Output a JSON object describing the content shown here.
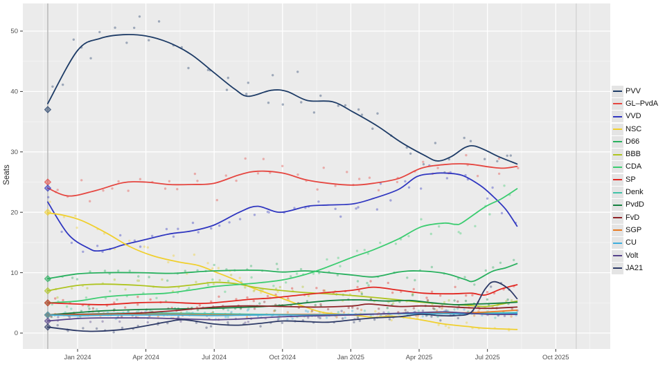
{
  "chart_data": {
    "type": "line",
    "title": "",
    "xlabel": "",
    "ylabel": "Seats",
    "ylim": [
      0,
      52
    ],
    "grid": true,
    "legend_position": "right",
    "x_unit": "months since Jan 2024",
    "y_ticks": [
      0,
      10,
      20,
      30,
      40,
      50
    ],
    "x_ticks": [
      {
        "t": 0,
        "label": "Jan 2024"
      },
      {
        "t": 3,
        "label": "Apr 2024"
      },
      {
        "t": 6,
        "label": "Jul 2024"
      },
      {
        "t": 9,
        "label": "Oct 2024"
      },
      {
        "t": 12,
        "label": "Jan 2025"
      },
      {
        "t": 15,
        "label": "Apr 2025"
      },
      {
        "t": 18,
        "label": "Jul 2025"
      },
      {
        "t": 21,
        "label": "Oct 2025"
      }
    ],
    "vlines": [
      {
        "t": -1.31,
        "name": "election-2023-marker"
      },
      {
        "t": 21.9,
        "name": "election-2025-marker"
      }
    ],
    "series": [
      {
        "name": "PVV",
        "color": "#1d3b66",
        "election_seats": 37,
        "points": [
          [
            -1.31,
            38
          ],
          [
            0,
            46.8
          ],
          [
            1,
            48.8
          ],
          [
            2,
            49.4
          ],
          [
            3,
            49.2
          ],
          [
            4,
            48.1
          ],
          [
            5,
            46.1
          ],
          [
            6,
            43.1
          ],
          [
            6.9,
            40.4
          ],
          [
            7.5,
            39.2
          ],
          [
            8.5,
            40.2
          ],
          [
            9.2,
            40
          ],
          [
            10.1,
            38.5
          ],
          [
            11.2,
            38.3
          ],
          [
            12.1,
            36.6
          ],
          [
            13.2,
            34.2
          ],
          [
            14.2,
            31.6
          ],
          [
            15.2,
            29.5
          ],
          [
            15.8,
            28.5
          ],
          [
            16.4,
            29.2
          ],
          [
            17,
            30.7
          ],
          [
            17.4,
            31
          ],
          [
            17.9,
            30.3
          ],
          [
            18.5,
            29.2
          ],
          [
            19.3,
            28
          ]
        ]
      },
      {
        "name": "GL–PvdA",
        "color": "#e5453f",
        "election_seats": 25,
        "points": [
          [
            -1.31,
            24
          ],
          [
            -0.4,
            22.7
          ],
          [
            0.8,
            23.6
          ],
          [
            2,
            24.9
          ],
          [
            3,
            25
          ],
          [
            4,
            24.6
          ],
          [
            5,
            24.6
          ],
          [
            6,
            24.8
          ],
          [
            7.1,
            26.2
          ],
          [
            7.9,
            26.8
          ],
          [
            9,
            26.5
          ],
          [
            10,
            25.4
          ],
          [
            11,
            24.8
          ],
          [
            12.1,
            24.5
          ],
          [
            13,
            24.8
          ],
          [
            14.1,
            25.6
          ],
          [
            15.1,
            27.3
          ],
          [
            16.1,
            27.9
          ],
          [
            17.1,
            28
          ],
          [
            18.1,
            27.5
          ],
          [
            18.7,
            27.3
          ],
          [
            19.3,
            27.6
          ]
        ]
      },
      {
        "name": "VVD",
        "color": "#2f36c0",
        "election_seats": 24,
        "points": [
          [
            -1.31,
            21.7
          ],
          [
            -0.4,
            16.3
          ],
          [
            0.5,
            14
          ],
          [
            0.9,
            13.6
          ],
          [
            1.5,
            14
          ],
          [
            2,
            14.6
          ],
          [
            3,
            15.5
          ],
          [
            4,
            16.4
          ],
          [
            5,
            16.9
          ],
          [
            6,
            17.9
          ],
          [
            7.1,
            20
          ],
          [
            7.9,
            21
          ],
          [
            8.9,
            20
          ],
          [
            10.1,
            21
          ],
          [
            11,
            21.2
          ],
          [
            12.1,
            21.4
          ],
          [
            13,
            22.3
          ],
          [
            14.1,
            23.8
          ],
          [
            14.9,
            25.9
          ],
          [
            15.6,
            26.4
          ],
          [
            16.1,
            26.5
          ],
          [
            16.9,
            26.1
          ],
          [
            17.7,
            24.4
          ],
          [
            18.2,
            22.8
          ],
          [
            18.8,
            20.5
          ],
          [
            19.3,
            17.7
          ]
        ]
      },
      {
        "name": "NSC",
        "color": "#f0cf2c",
        "election_seats": 20,
        "points": [
          [
            -1.31,
            19.9
          ],
          [
            -0.6,
            19.5
          ],
          [
            0.2,
            18.6
          ],
          [
            1.3,
            16.5
          ],
          [
            2.3,
            14.3
          ],
          [
            3.3,
            12.8
          ],
          [
            4.4,
            11.8
          ],
          [
            5.3,
            11.2
          ],
          [
            6,
            10.2
          ],
          [
            6.8,
            9
          ],
          [
            7.6,
            7.6
          ],
          [
            8.8,
            6
          ],
          [
            9.8,
            4.6
          ],
          [
            10.8,
            3.4
          ],
          [
            12.1,
            3
          ],
          [
            13,
            2.6
          ],
          [
            13.8,
            2.8
          ],
          [
            14.9,
            2.3
          ],
          [
            16.1,
            1.5
          ],
          [
            17.1,
            1.1
          ],
          [
            17.9,
            0.8
          ],
          [
            19.3,
            0.6
          ]
        ]
      },
      {
        "name": "D66",
        "color": "#28b05e",
        "election_seats": 9,
        "points": [
          [
            -1.31,
            9
          ],
          [
            0,
            9.8
          ],
          [
            1.2,
            10
          ],
          [
            2.7,
            10
          ],
          [
            4.2,
            9.9
          ],
          [
            6,
            10.3
          ],
          [
            7.9,
            10.4
          ],
          [
            9,
            10.1
          ],
          [
            10,
            10.3
          ],
          [
            11,
            10
          ],
          [
            12.1,
            9.6
          ],
          [
            13,
            9.3
          ],
          [
            14.1,
            10.1
          ],
          [
            14.9,
            10.3
          ],
          [
            16.1,
            9.9
          ],
          [
            17,
            8.9
          ],
          [
            17.4,
            8.6
          ],
          [
            18.2,
            10.2
          ],
          [
            18.8,
            10.8
          ],
          [
            19.3,
            11.5
          ]
        ]
      },
      {
        "name": "BBB",
        "color": "#aec41f",
        "election_seats": 7,
        "points": [
          [
            -1.31,
            7
          ],
          [
            0,
            7.9
          ],
          [
            1.2,
            8.1
          ],
          [
            2.7,
            7.9
          ],
          [
            3.9,
            7.6
          ],
          [
            5.1,
            8
          ],
          [
            6,
            8.4
          ],
          [
            6.9,
            8.2
          ],
          [
            7.9,
            7.5
          ],
          [
            8.8,
            7.1
          ],
          [
            10,
            6.7
          ],
          [
            11,
            6.5
          ],
          [
            12.1,
            6.2
          ],
          [
            13,
            5.9
          ],
          [
            14.1,
            5.5
          ],
          [
            15.1,
            5.1
          ],
          [
            16.1,
            4.8
          ],
          [
            17.1,
            4.6
          ],
          [
            17.9,
            4.4
          ],
          [
            18.5,
            4.7
          ],
          [
            19.3,
            5.3
          ]
        ]
      },
      {
        "name": "CDA",
        "color": "#3bcc70",
        "election_seats": 5,
        "points": [
          [
            -1.31,
            5
          ],
          [
            0,
            5.3
          ],
          [
            1.2,
            6
          ],
          [
            2.7,
            6.4
          ],
          [
            3.9,
            6.6
          ],
          [
            5.1,
            7.2
          ],
          [
            6,
            7.7
          ],
          [
            6.9,
            8
          ],
          [
            7.9,
            8.3
          ],
          [
            9,
            8.8
          ],
          [
            10,
            9.7
          ],
          [
            10.8,
            10.7
          ],
          [
            12.1,
            12.6
          ],
          [
            13,
            13.8
          ],
          [
            14.1,
            15.6
          ],
          [
            15.1,
            17.6
          ],
          [
            16.1,
            18.2
          ],
          [
            16.6,
            18
          ],
          [
            16.9,
            18.3
          ],
          [
            17.9,
            20.9
          ],
          [
            18.6,
            22.2
          ],
          [
            19.3,
            23.9
          ]
        ]
      },
      {
        "name": "SP",
        "color": "#e2251f",
        "election_seats": 5,
        "points": [
          [
            -1.31,
            5
          ],
          [
            0,
            4.8
          ],
          [
            1.2,
            4.7
          ],
          [
            2.5,
            5
          ],
          [
            3.9,
            5.1
          ],
          [
            5.4,
            4.9
          ],
          [
            6.5,
            5.2
          ],
          [
            7.6,
            5.6
          ],
          [
            8.5,
            5.8
          ],
          [
            9.8,
            6.3
          ],
          [
            10.9,
            6.7
          ],
          [
            12.1,
            7.1
          ],
          [
            13,
            7.6
          ],
          [
            14.1,
            7.1
          ],
          [
            15.2,
            6.6
          ],
          [
            16.4,
            6.5
          ],
          [
            17.3,
            6.6
          ],
          [
            17.9,
            6.3
          ],
          [
            18.6,
            7.3
          ],
          [
            19.3,
            8
          ]
        ]
      },
      {
        "name": "Denk",
        "color": "#3fc2a7",
        "election_seats": 3,
        "points": [
          [
            -1.31,
            3
          ],
          [
            0,
            3.1
          ],
          [
            2,
            3.3
          ],
          [
            4,
            3.3
          ],
          [
            6,
            3.2
          ],
          [
            8,
            3.1
          ],
          [
            10,
            3.1
          ],
          [
            12.1,
            3.1
          ],
          [
            14.1,
            3.2
          ],
          [
            16.1,
            3.2
          ],
          [
            18,
            3.3
          ],
          [
            19.3,
            3.4
          ]
        ]
      },
      {
        "name": "PvdD",
        "color": "#15803f",
        "election_seats": 3,
        "points": [
          [
            -1.31,
            3
          ],
          [
            0,
            3.4
          ],
          [
            1.2,
            3.7
          ],
          [
            2.7,
            3.9
          ],
          [
            4.3,
            4
          ],
          [
            6,
            4.1
          ],
          [
            7.6,
            4.3
          ],
          [
            9,
            4.6
          ],
          [
            10,
            5
          ],
          [
            11.2,
            5.4
          ],
          [
            12.4,
            5.5
          ],
          [
            13.6,
            5.3
          ],
          [
            14.6,
            5.4
          ],
          [
            15.6,
            5
          ],
          [
            16.6,
            4.7
          ],
          [
            17.4,
            4.8
          ],
          [
            18.2,
            4.9
          ],
          [
            19.3,
            5.1
          ]
        ]
      },
      {
        "name": "FvD",
        "color": "#8e2226",
        "election_seats": 3,
        "points": [
          [
            -1.31,
            3
          ],
          [
            0,
            3.1
          ],
          [
            2,
            3.2
          ],
          [
            3.9,
            3.6
          ],
          [
            6,
            4.3
          ],
          [
            7.5,
            4.5
          ],
          [
            9,
            4.4
          ],
          [
            10.5,
            4.3
          ],
          [
            12.1,
            4.5
          ],
          [
            12.8,
            4.8
          ],
          [
            14.1,
            4.4
          ],
          [
            15.1,
            4.5
          ],
          [
            16.1,
            4.4
          ],
          [
            17.1,
            4.2
          ],
          [
            18.1,
            4.1
          ],
          [
            19.3,
            4.3
          ]
        ]
      },
      {
        "name": "SGP",
        "color": "#e8791f",
        "election_seats": 3,
        "points": [
          [
            -1.31,
            3
          ],
          [
            0,
            3
          ],
          [
            2,
            3.1
          ],
          [
            4,
            3.1
          ],
          [
            6,
            3
          ],
          [
            8,
            3
          ],
          [
            10,
            3.1
          ],
          [
            12.1,
            3.1
          ],
          [
            14.1,
            3.2
          ],
          [
            16.1,
            3.3
          ],
          [
            17.5,
            3.4
          ],
          [
            18.5,
            3.6
          ],
          [
            19.3,
            3.8
          ]
        ]
      },
      {
        "name": "CU",
        "color": "#3eaede",
        "election_seats": 3,
        "points": [
          [
            -1.31,
            3
          ],
          [
            0,
            2.9
          ],
          [
            2,
            3
          ],
          [
            4,
            3
          ],
          [
            6,
            2.9
          ],
          [
            8,
            3
          ],
          [
            10,
            3
          ],
          [
            12.1,
            3.1
          ],
          [
            14.1,
            3.2
          ],
          [
            16.1,
            3.2
          ],
          [
            18.1,
            3.2
          ],
          [
            19.3,
            3.3
          ]
        ]
      },
      {
        "name": "Volt",
        "color": "#55428a",
        "election_seats": 2,
        "points": [
          [
            -1.31,
            2
          ],
          [
            0,
            2.4
          ],
          [
            1,
            2.5
          ],
          [
            3,
            2.5
          ],
          [
            5,
            2.3
          ],
          [
            6,
            2.2
          ],
          [
            7,
            2.3
          ],
          [
            9,
            2.7
          ],
          [
            11,
            2.9
          ],
          [
            12.1,
            3
          ],
          [
            13.5,
            3.2
          ],
          [
            15.1,
            3.4
          ],
          [
            16.1,
            3.5
          ],
          [
            17.1,
            3.3
          ],
          [
            18.1,
            3.1
          ],
          [
            19.3,
            3.1
          ]
        ]
      },
      {
        "name": "JA21",
        "color": "#2c3966",
        "election_seats": 1,
        "points": [
          [
            -1.31,
            1
          ],
          [
            0,
            0.4
          ],
          [
            0.8,
            0.3
          ],
          [
            2,
            0.6
          ],
          [
            3,
            1.2
          ],
          [
            4,
            1.9
          ],
          [
            4.7,
            2.2
          ],
          [
            6,
            1.5
          ],
          [
            7,
            1.3
          ],
          [
            8,
            1.6
          ],
          [
            9,
            2
          ],
          [
            10,
            1.9
          ],
          [
            11,
            1.8
          ],
          [
            12.1,
            2.2
          ],
          [
            13,
            2.5
          ],
          [
            14.1,
            2.7
          ],
          [
            15.1,
            3.1
          ],
          [
            15.9,
            2.9
          ],
          [
            16.6,
            2.9
          ],
          [
            17.3,
            3.5
          ],
          [
            17.9,
            7.3
          ],
          [
            18.3,
            8.5
          ],
          [
            18.9,
            7.4
          ],
          [
            19.3,
            5.7
          ]
        ]
      }
    ]
  },
  "style": {
    "panel_bg": "#ebebeb",
    "grid_major": "#ffffff",
    "grid_minor": "#f7f7f7",
    "vline_left": "#b9b9b9",
    "vline_right": "#cfcfcf",
    "tick_label_color": "#4d4d4d",
    "axis_tick_color": "#333333"
  }
}
